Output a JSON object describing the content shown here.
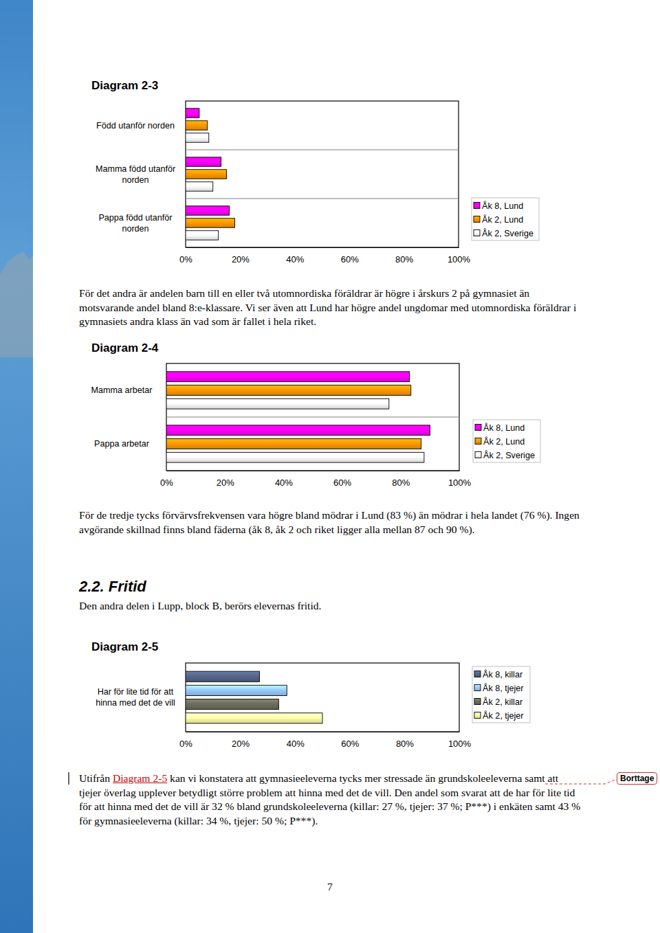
{
  "chart_data": [
    {
      "type": "bar",
      "orientation": "horizontal",
      "title": "Diagram 2-3",
      "categories": [
        "Född utanför norden",
        "Mamma född utanför norden",
        "Pappa född utanför norden"
      ],
      "series": [
        {
          "name": "Åk 8, Lund",
          "color": "#ff00ff",
          "values": [
            5,
            13,
            16
          ]
        },
        {
          "name": "Åk 2, Lund",
          "color": "#ff9900",
          "values": [
            8,
            15,
            18
          ]
        },
        {
          "name": "Åk 2, Sverige",
          "color": "#ffffff",
          "values": [
            8.5,
            10,
            12
          ]
        }
      ],
      "xlim": [
        0,
        100
      ],
      "xticks": [
        {
          "value": 0,
          "label": "0%"
        },
        {
          "value": 20,
          "label": "20%"
        },
        {
          "value": 40,
          "label": "40%"
        },
        {
          "value": 60,
          "label": "60%"
        },
        {
          "value": 80,
          "label": "80%"
        },
        {
          "value": 100,
          "label": "100%"
        }
      ],
      "grid": false,
      "legend": "right"
    },
    {
      "type": "bar",
      "orientation": "horizontal",
      "title": "Diagram 2-4",
      "categories": [
        "Mamma arbetar",
        "Pappa arbetar"
      ],
      "series": [
        {
          "name": "Åk 8, Lund",
          "color": "#ff00ff",
          "values": [
            83,
            90
          ]
        },
        {
          "name": "Åk 2, Lund",
          "color": "#ff9900",
          "values": [
            83.5,
            87
          ]
        },
        {
          "name": "Åk 2, Sverige",
          "color": "#ffffff",
          "values": [
            76,
            88
          ]
        }
      ],
      "xlim": [
        0,
        100
      ],
      "xticks": [
        {
          "value": 0,
          "label": "0%"
        },
        {
          "value": 20,
          "label": "20%"
        },
        {
          "value": 40,
          "label": "40%"
        },
        {
          "value": 60,
          "label": "60%"
        },
        {
          "value": 80,
          "label": "80%"
        },
        {
          "value": 100,
          "label": "100%"
        }
      ],
      "grid": false,
      "legend": "right"
    },
    {
      "type": "bar",
      "orientation": "horizontal",
      "title": "Diagram 2-5",
      "categories": [
        "Har för lite tid för att hinna med det de vill"
      ],
      "series": [
        {
          "name": "Åk 8, killar",
          "color": "#56668a",
          "values": [
            27
          ]
        },
        {
          "name": "Åk 8, tjejer",
          "color": "#99ccff",
          "values": [
            37
          ]
        },
        {
          "name": "Åk 2, killar",
          "color": "#6e6e5e",
          "values": [
            34
          ]
        },
        {
          "name": "Åk 2, tjejer",
          "color": "#ffffaa",
          "values": [
            50
          ]
        }
      ],
      "xlim": [
        0,
        100
      ],
      "xticks": [
        {
          "value": 0,
          "label": "0%"
        },
        {
          "value": 20,
          "label": "20%"
        },
        {
          "value": 40,
          "label": "40%"
        },
        {
          "value": 60,
          "label": "60%"
        },
        {
          "value": 80,
          "label": "80%"
        },
        {
          "value": 100,
          "label": "100%"
        }
      ],
      "grid": false,
      "legend": "right"
    }
  ],
  "document": {
    "paragraph_after_2_3": "För det andra är andelen barn till en eller två utomnordiska föräldrar är högre i årskurs 2 på gymnasiet än motsvarande andel bland 8:e-klassare. Vi ser även att Lund har högre andel ungdomar med utomnordiska föräldrar i gymnasiets andra klass än vad som är fallet i hela riket.",
    "paragraph_after_2_4": "För de tredje tycks förvärvsfrekvensen vara högre bland mödrar i Lund (83 %) än mödrar i hela landet (76 %). Ingen avgörande skillnad finns bland fäderna (åk 8, åk 2 och riket ligger alla mellan 87 och 90 %).",
    "section_heading": "2.2. Fritid",
    "section_intro": "Den andra delen i Lupp, block B, berörs elevernas fritid.",
    "paragraph_after_2_5": {
      "before": "Utifrån ",
      "link": "Diagram 2-5",
      "after": " kan vi konstatera att gymnasieeleverna tycks mer stressade än grundskoleeleverna samt att tjejer överlag upplever betydligt större problem att hinna med det de vill. Den andel som svarat att de har för lite tid för att hinna med det de vill är 32 % bland grundskoleeleverna (killar: 27 %, tjejer: 37 %; P***) i enkäten samt 43 % för gymnasieeleverna (killar: 34 %, tjejer: 50 %; P***)."
    },
    "revision_mark": "Borttage",
    "page_number": "7"
  }
}
